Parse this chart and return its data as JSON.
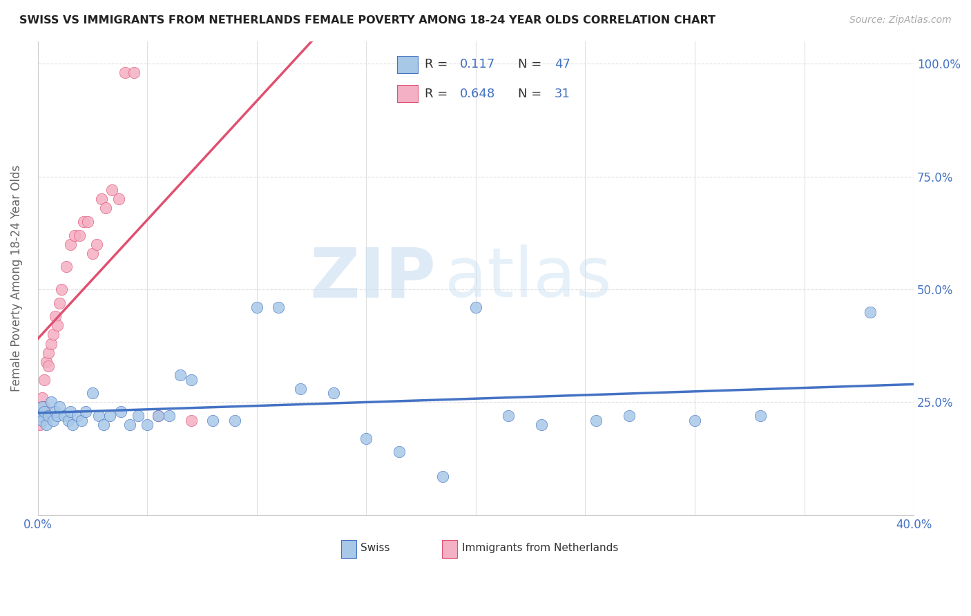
{
  "title": "SWISS VS IMMIGRANTS FROM NETHERLANDS FEMALE POVERTY AMONG 18-24 YEAR OLDS CORRELATION CHART",
  "source": "Source: ZipAtlas.com",
  "ylabel": "Female Poverty Among 18-24 Year Olds",
  "xlim": [
    0.0,
    0.4
  ],
  "ylim": [
    0.0,
    1.05
  ],
  "color_swiss": "#a8c8e8",
  "color_netherlands": "#f4b0c4",
  "color_line_swiss": "#4472c4",
  "color_line_netherlands": "#e05070",
  "legend_r_swiss": "0.117",
  "legend_n_swiss": "47",
  "legend_r_neth": "0.648",
  "legend_n_neth": "31",
  "swiss_x": [
    0.001,
    0.002,
    0.002,
    0.003,
    0.004,
    0.005,
    0.006,
    0.007,
    0.008,
    0.009,
    0.01,
    0.012,
    0.014,
    0.015,
    0.016,
    0.018,
    0.02,
    0.022,
    0.025,
    0.028,
    0.03,
    0.033,
    0.038,
    0.042,
    0.046,
    0.05,
    0.055,
    0.06,
    0.065,
    0.07,
    0.08,
    0.09,
    0.1,
    0.11,
    0.12,
    0.135,
    0.15,
    0.165,
    0.185,
    0.2,
    0.215,
    0.23,
    0.255,
    0.27,
    0.3,
    0.33,
    0.38
  ],
  "swiss_y": [
    0.22,
    0.24,
    0.21,
    0.23,
    0.2,
    0.22,
    0.25,
    0.21,
    0.23,
    0.22,
    0.24,
    0.22,
    0.21,
    0.23,
    0.2,
    0.22,
    0.21,
    0.23,
    0.27,
    0.22,
    0.2,
    0.22,
    0.23,
    0.2,
    0.22,
    0.2,
    0.22,
    0.22,
    0.31,
    0.3,
    0.21,
    0.21,
    0.46,
    0.46,
    0.28,
    0.27,
    0.17,
    0.14,
    0.085,
    0.46,
    0.22,
    0.2,
    0.21,
    0.22,
    0.21,
    0.22,
    0.45
  ],
  "neth_x": [
    0.001,
    0.001,
    0.002,
    0.002,
    0.003,
    0.003,
    0.004,
    0.005,
    0.005,
    0.006,
    0.007,
    0.008,
    0.009,
    0.01,
    0.011,
    0.013,
    0.015,
    0.017,
    0.019,
    0.021,
    0.023,
    0.025,
    0.027,
    0.029,
    0.031,
    0.034,
    0.037,
    0.04,
    0.044,
    0.055,
    0.07
  ],
  "neth_y": [
    0.2,
    0.22,
    0.22,
    0.26,
    0.24,
    0.3,
    0.34,
    0.33,
    0.36,
    0.38,
    0.4,
    0.44,
    0.42,
    0.47,
    0.5,
    0.55,
    0.6,
    0.62,
    0.62,
    0.65,
    0.65,
    0.58,
    0.6,
    0.7,
    0.68,
    0.72,
    0.7,
    0.98,
    0.98,
    0.22,
    0.21
  ],
  "neth_line_xend": 0.038
}
